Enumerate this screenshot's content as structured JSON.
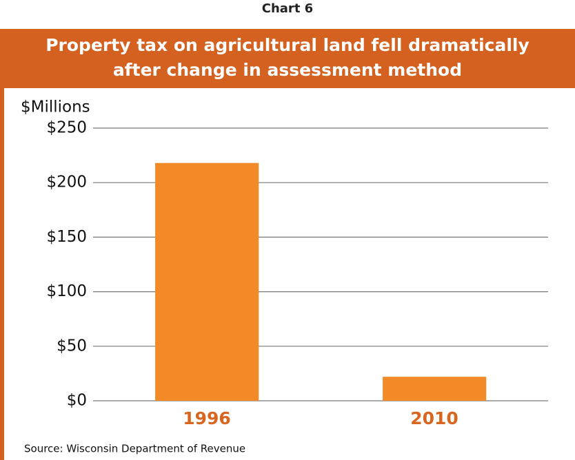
{
  "chart_data": {
    "type": "bar",
    "chart_number": "Chart 6",
    "title": "Property tax on agricultural land fell dramatically\nafter change in assessment method",
    "ylabel": "$Millions",
    "categories": [
      "1996",
      "2010"
    ],
    "values": [
      218,
      22
    ],
    "color": "#f28a27",
    "ylim": [
      0,
      250
    ],
    "yticks": [
      {
        "value": 0,
        "label": "$0"
      },
      {
        "value": 50,
        "label": "$50"
      },
      {
        "value": 100,
        "label": "$100"
      },
      {
        "value": 150,
        "label": "$150"
      },
      {
        "value": 200,
        "label": "$200"
      },
      {
        "value": 250,
        "label": "$250"
      }
    ],
    "grid": true,
    "source": "Source: Wisconsin Department of Revenue"
  }
}
